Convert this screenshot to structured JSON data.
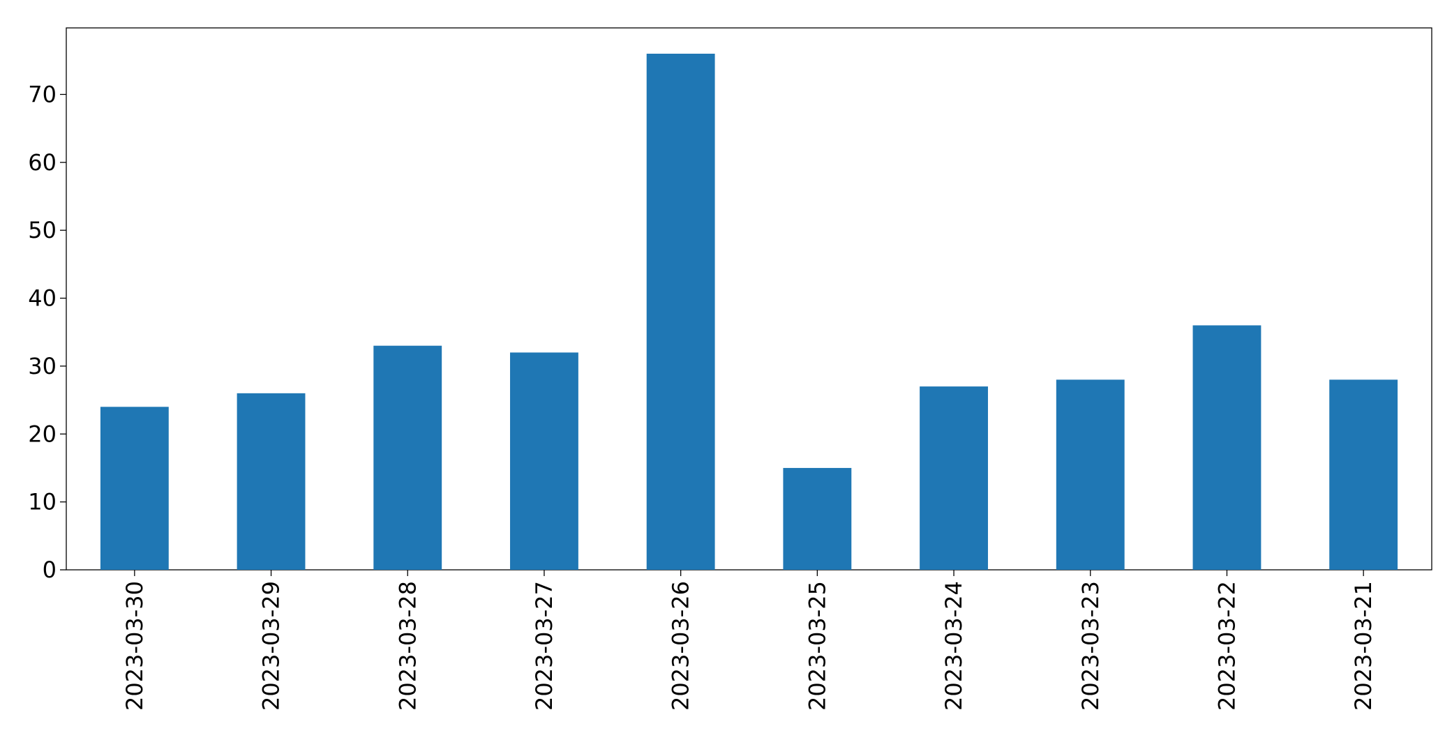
{
  "chart_data": {
    "type": "bar",
    "categories": [
      "2023-03-30",
      "2023-03-29",
      "2023-03-28",
      "2023-03-27",
      "2023-03-26",
      "2023-03-25",
      "2023-03-24",
      "2023-03-23",
      "2023-03-22",
      "2023-03-21"
    ],
    "values": [
      24,
      26,
      33,
      32,
      76,
      15,
      27,
      28,
      36,
      28
    ],
    "color": "#1f77b4",
    "ylim": [
      0,
      79.8
    ],
    "yticks": [
      0,
      10,
      20,
      30,
      40,
      50,
      60,
      70
    ],
    "grid": false
  }
}
